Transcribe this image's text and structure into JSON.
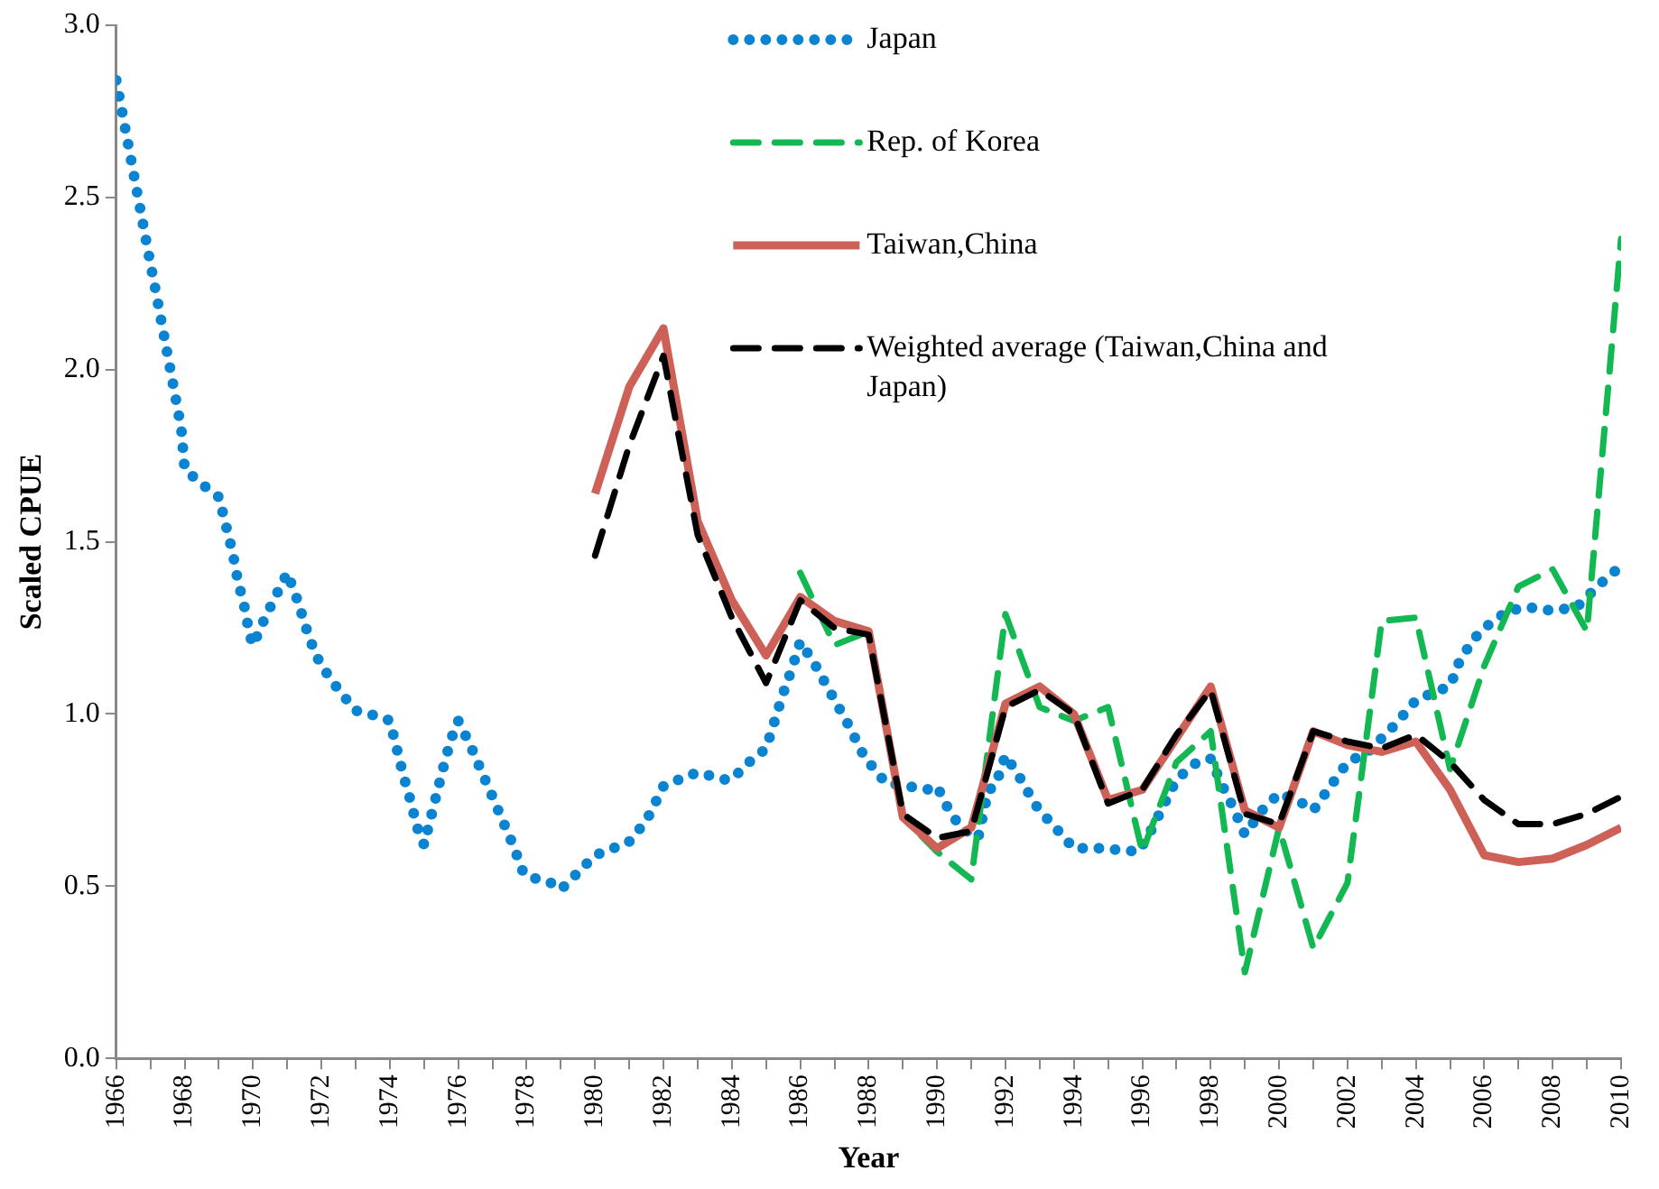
{
  "chart_data": {
    "type": "line",
    "xlabel": "Year",
    "ylabel": "Scaled CPUE",
    "xlim": [
      1966,
      2010
    ],
    "xticks": [
      {
        "value": 1966,
        "label": "1966"
      },
      {
        "value": 1967,
        "label": null
      },
      {
        "value": 1968,
        "label": "1968"
      },
      {
        "value": 1969,
        "label": null
      },
      {
        "value": 1970,
        "label": "1970"
      },
      {
        "value": 1971,
        "label": null
      },
      {
        "value": 1972,
        "label": "1972"
      },
      {
        "value": 1973,
        "label": null
      },
      {
        "value": 1974,
        "label": "1974"
      },
      {
        "value": 1975,
        "label": null
      },
      {
        "value": 1976,
        "label": "1976"
      },
      {
        "value": 1977,
        "label": null
      },
      {
        "value": 1978,
        "label": "1978"
      },
      {
        "value": 1979,
        "label": null
      },
      {
        "value": 1980,
        "label": "1980"
      },
      {
        "value": 1981,
        "label": null
      },
      {
        "value": 1982,
        "label": "1982"
      },
      {
        "value": 1983,
        "label": null
      },
      {
        "value": 1984,
        "label": "1984"
      },
      {
        "value": 1985,
        "label": null
      },
      {
        "value": 1986,
        "label": "1986"
      },
      {
        "value": 1987,
        "label": null
      },
      {
        "value": 1988,
        "label": "1988"
      },
      {
        "value": 1989,
        "label": null
      },
      {
        "value": 1990,
        "label": "1990"
      },
      {
        "value": 1991,
        "label": null
      },
      {
        "value": 1992,
        "label": "1992"
      },
      {
        "value": 1993,
        "label": null
      },
      {
        "value": 1994,
        "label": "1994"
      },
      {
        "value": 1995,
        "label": null
      },
      {
        "value": 1996,
        "label": "1996"
      },
      {
        "value": 1997,
        "label": null
      },
      {
        "value": 1998,
        "label": "1998"
      },
      {
        "value": 1999,
        "label": null
      },
      {
        "value": 2000,
        "label": "2000"
      },
      {
        "value": 2001,
        "label": null
      },
      {
        "value": 2002,
        "label": "2002"
      },
      {
        "value": 2003,
        "label": null
      },
      {
        "value": 2004,
        "label": "2004"
      },
      {
        "value": 2005,
        "label": null
      },
      {
        "value": 2006,
        "label": "2006"
      },
      {
        "value": 2007,
        "label": null
      },
      {
        "value": 2008,
        "label": "2008"
      },
      {
        "value": 2009,
        "label": null
      },
      {
        "value": 2010,
        "label": "2010"
      }
    ],
    "ylim": [
      0,
      3
    ],
    "yticks": [
      {
        "value": 0,
        "label": "0.0"
      },
      {
        "value": 0.5,
        "label": "0.5"
      },
      {
        "value": 1,
        "label": "1.0"
      },
      {
        "value": 1.5,
        "label": "1.5"
      },
      {
        "value": 2,
        "label": "2.0"
      },
      {
        "value": 2.5,
        "label": "2.5"
      },
      {
        "value": 3,
        "label": "3.0"
      }
    ],
    "grid": false,
    "legend": "top right",
    "marker": "none",
    "series": [
      {
        "name": "Japan",
        "color": "#0a84d0",
        "line_style": "dotted",
        "x": [
          1966,
          1966.15,
          1966.3,
          1966.45,
          1966.6,
          1966.75,
          1966.9,
          1967.15,
          1967.3,
          1967.45,
          1967.6,
          1967.75,
          1967.9,
          1968,
          1968.6,
          1969,
          1969.2,
          1969.4,
          1969.55,
          1969.75,
          1969.9,
          1970,
          1970.35,
          1970.7,
          1971,
          1971.3,
          1971.55,
          1971.8,
          1972,
          1972.5,
          1973,
          1973.8,
          1974,
          1974.2,
          1974.4,
          1974.6,
          1974.8,
          1975,
          1975.2,
          1975.4,
          1975.6,
          1975.8,
          1976,
          1976.35,
          1976.65,
          1977,
          1977.3,
          1977.6,
          1977.9,
          1978,
          1978.7,
          1979,
          1979.6,
          1980,
          1980.8,
          1981,
          1981.5,
          1982,
          1982.7,
          1983,
          1983.8,
          1984,
          1984.5,
          1985,
          1985.25,
          1985.5,
          1985.75,
          1986,
          1986.45,
          1986.95,
          1987.4,
          1987.8,
          1988,
          1988.5,
          1989.8,
          1990,
          1990.35,
          1990.7,
          1991.2,
          1991.5,
          1991.7,
          1992,
          1992.45,
          1992.85,
          1993,
          1993.55,
          1994,
          1994.85,
          1995.9,
          1996.3,
          1997,
          1997.6,
          1998,
          1998.35,
          1998.7,
          1999,
          1999.5,
          2000,
          2000.7,
          2001,
          2001.5,
          2002,
          2002.6,
          2003.4,
          2004,
          2004.7,
          2005,
          2005.3,
          2005.8,
          2006,
          2006.7,
          2007.3,
          2008,
          2008.7,
          2009.3,
          2010
        ],
        "values": [
          2.84,
          2.76,
          2.68,
          2.6,
          2.52,
          2.44,
          2.36,
          2.23,
          2.15,
          2.07,
          1.99,
          1.91,
          1.83,
          1.71,
          1.66,
          1.63,
          1.55,
          1.47,
          1.39,
          1.31,
          1.23,
          1.2,
          1.28,
          1.35,
          1.41,
          1.33,
          1.25,
          1.18,
          1.14,
          1.07,
          1.01,
          0.99,
          0.98,
          0.9,
          0.82,
          0.75,
          0.67,
          0.62,
          0.7,
          0.78,
          0.86,
          0.93,
          0.98,
          0.91,
          0.84,
          0.76,
          0.69,
          0.62,
          0.54,
          0.53,
          0.51,
          0.49,
          0.55,
          0.59,
          0.62,
          0.63,
          0.69,
          0.79,
          0.82,
          0.83,
          0.81,
          0.81,
          0.86,
          0.9,
          0.98,
          1.06,
          1.13,
          1.21,
          1.14,
          1.05,
          0.97,
          0.89,
          0.86,
          0.8,
          0.78,
          0.79,
          0.72,
          0.67,
          0.64,
          0.78,
          0.79,
          0.88,
          0.81,
          0.74,
          0.72,
          0.66,
          0.61,
          0.61,
          0.6,
          0.67,
          0.81,
          0.86,
          0.87,
          0.79,
          0.72,
          0.65,
          0.72,
          0.77,
          0.74,
          0.72,
          0.79,
          0.86,
          0.89,
          0.97,
          1.04,
          1.07,
          1.08,
          1.16,
          1.23,
          1.25,
          1.3,
          1.31,
          1.3,
          1.31,
          1.37,
          1.43
        ]
      },
      {
        "name": "Rep. of Korea",
        "color": "#13b853",
        "line_style": "dashed",
        "x": [
          1986,
          1987,
          1988,
          1989,
          1990,
          1991,
          1992,
          1993,
          1994,
          1995,
          1996,
          1997,
          1998,
          1999,
          2000,
          2001,
          2002,
          2003,
          2004,
          2005,
          2006,
          2007,
          2008,
          2009,
          2010
        ],
        "values": [
          1.41,
          1.2,
          1.24,
          0.7,
          0.6,
          0.52,
          1.29,
          1.02,
          0.98,
          1.02,
          0.6,
          0.86,
          0.95,
          0.25,
          0.67,
          0.32,
          0.51,
          1.27,
          1.28,
          0.84,
          1.14,
          1.37,
          1.42,
          1.24,
          2.38
        ]
      },
      {
        "name": "Taiwan,China",
        "color": "#cd6158",
        "line_style": "solid",
        "x": [
          1980,
          1981,
          1982,
          1983,
          1984,
          1985,
          1986,
          1987,
          1988,
          1989,
          1990,
          1991,
          1992,
          1993,
          1994,
          1995,
          1996,
          1997,
          1998,
          1999,
          2000,
          2001,
          2002,
          2003,
          2004,
          2005,
          2006,
          2007,
          2008,
          2009,
          2010
        ],
        "values": [
          1.64,
          1.95,
          2.12,
          1.56,
          1.33,
          1.17,
          1.34,
          1.27,
          1.24,
          0.7,
          0.61,
          0.67,
          1.03,
          1.08,
          1.0,
          0.75,
          0.78,
          0.93,
          1.08,
          0.72,
          0.67,
          0.95,
          0.91,
          0.89,
          0.92,
          0.78,
          0.59,
          0.57,
          0.58,
          0.62,
          0.67
        ]
      },
      {
        "name": "Weighted average (Taiwan,China and Japan)",
        "color": "#000000",
        "line_style": "dashed",
        "x": [
          1980,
          1981,
          1982,
          1983,
          1984,
          1985,
          1986,
          1987,
          1988,
          1989,
          1990,
          1991,
          1992,
          1993,
          1994,
          1995,
          1996,
          1997,
          1998,
          1999,
          2000,
          2001,
          2002,
          2003,
          2004,
          2005,
          2006,
          2007,
          2008,
          2009,
          2010
        ],
        "values": [
          1.46,
          1.78,
          2.04,
          1.52,
          1.28,
          1.09,
          1.33,
          1.25,
          1.23,
          0.71,
          0.64,
          0.66,
          1.02,
          1.07,
          1.0,
          0.74,
          0.78,
          0.94,
          1.07,
          0.71,
          0.68,
          0.95,
          0.92,
          0.9,
          0.94,
          0.86,
          0.75,
          0.68,
          0.68,
          0.71,
          0.76
        ]
      }
    ]
  }
}
